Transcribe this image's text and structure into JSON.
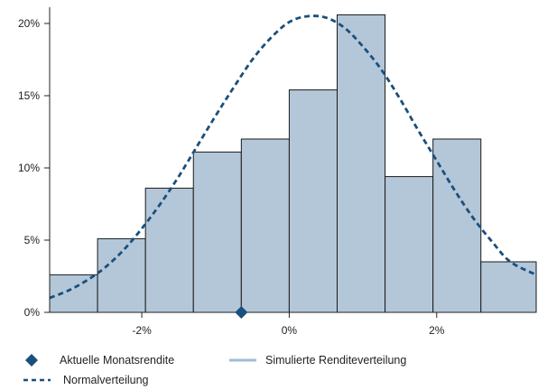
{
  "chart_data": {
    "type": "bar",
    "title": "",
    "xlabel": "",
    "ylabel": "",
    "x_ticks": [
      {
        "value": -0.02,
        "label": "-2%"
      },
      {
        "value": 0.0,
        "label": "0%"
      },
      {
        "value": 0.02,
        "label": "2%"
      }
    ],
    "y_ticks": [
      {
        "value": 0,
        "label": "0%"
      },
      {
        "value": 5,
        "label": "5%"
      },
      {
        "value": 10,
        "label": "10%"
      },
      {
        "value": 15,
        "label": "15%"
      },
      {
        "value": 20,
        "label": "20%"
      }
    ],
    "xlim": [
      -0.0325,
      0.0335
    ],
    "ylim": [
      0,
      21
    ],
    "grid": false,
    "legend_position": "bottom",
    "series": [
      {
        "name": "Simulierte Renditeverteilung",
        "kind": "histogram",
        "bin_edges": [
          -0.0325,
          -0.026,
          -0.0195,
          -0.013,
          -0.0065,
          0.0,
          0.0065,
          0.013,
          0.0195,
          0.026,
          0.0335
        ],
        "values": [
          2.6,
          5.1,
          8.6,
          11.1,
          12.0,
          15.4,
          20.6,
          9.4,
          12.0,
          3.5
        ],
        "color": "#b3c7d9",
        "edge_color": "#1a1a1a"
      },
      {
        "name": "Normalverteilung",
        "kind": "line",
        "style": "dashed",
        "color": "#1b4f7c",
        "mean": 0.0035,
        "sd": 0.0125,
        "peak": 20.5,
        "x": [
          -0.0325,
          -0.03,
          -0.0275,
          -0.025,
          -0.0225,
          -0.02,
          -0.0175,
          -0.015,
          -0.0125,
          -0.01,
          -0.0075,
          -0.005,
          -0.0025,
          0.0,
          0.0025,
          0.005,
          0.0075,
          0.01,
          0.0125,
          0.015,
          0.0175,
          0.02,
          0.0225,
          0.025,
          0.0275,
          0.03,
          0.0335
        ],
        "y": [
          1.0,
          1.5,
          2.2,
          3.1,
          4.3,
          5.8,
          7.5,
          9.4,
          11.5,
          13.6,
          15.6,
          17.5,
          19.0,
          20.1,
          20.5,
          20.4,
          19.7,
          18.4,
          16.8,
          14.8,
          12.6,
          10.5,
          8.4,
          6.5,
          4.9,
          3.5,
          2.6
        ]
      },
      {
        "name": "Aktuelle Monatsrendite",
        "kind": "marker",
        "marker": "diamond",
        "color": "#1b4f7c",
        "x": [
          -0.0065
        ],
        "y": [
          0
        ]
      }
    ],
    "legend": [
      {
        "label": "Aktuelle Monatsrendite",
        "symbol": "diamond",
        "color": "#1b4f7c"
      },
      {
        "label": "Simulierte Renditeverteilung",
        "symbol": "line",
        "color": "#9fbcd6"
      },
      {
        "label": "Normalverteilung",
        "symbol": "dashed-line",
        "color": "#1b4f7c"
      }
    ]
  }
}
